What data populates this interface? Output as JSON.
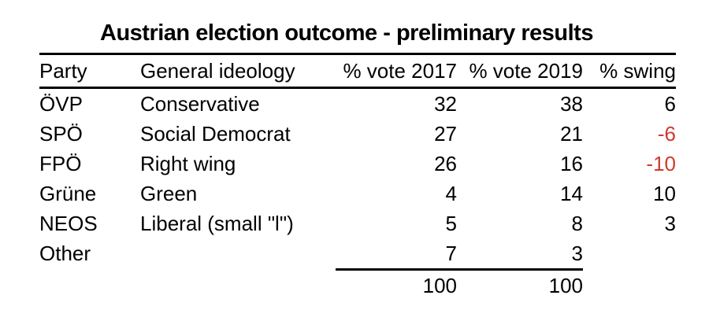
{
  "title": "Austrian election outcome - preliminary results",
  "colors": {
    "background": "#ffffff",
    "text": "#000000",
    "rule": "#000000",
    "negative": "#cf3a2d"
  },
  "chart_data": {
    "type": "table",
    "title": "Austrian election outcome - preliminary results",
    "columns": [
      "Party",
      "General ideology",
      "% vote 2017",
      "% vote 2019",
      "% swing"
    ],
    "rows": [
      {
        "party": "ÖVP",
        "ideology": "Conservative",
        "vote_2017": 32,
        "vote_2019": 38,
        "swing": 6
      },
      {
        "party": "SPÖ",
        "ideology": "Social Democrat",
        "vote_2017": 27,
        "vote_2019": 21,
        "swing": -6
      },
      {
        "party": "FPÖ",
        "ideology": "Right wing",
        "vote_2017": 26,
        "vote_2019": 16,
        "swing": -10
      },
      {
        "party": "Grüne",
        "ideology": "Green",
        "vote_2017": 4,
        "vote_2019": 14,
        "swing": 10
      },
      {
        "party": "NEOS",
        "ideology": "Liberal (small \"l\")",
        "vote_2017": 5,
        "vote_2019": 8,
        "swing": 3
      },
      {
        "party": "Other",
        "ideology": "",
        "vote_2017": 7,
        "vote_2019": 3,
        "swing": ""
      }
    ],
    "totals": {
      "vote_2017": 100,
      "vote_2019": 100
    },
    "layout": {
      "grid": "off",
      "negative_values_in_red": true,
      "numeric_alignment": "right"
    }
  }
}
